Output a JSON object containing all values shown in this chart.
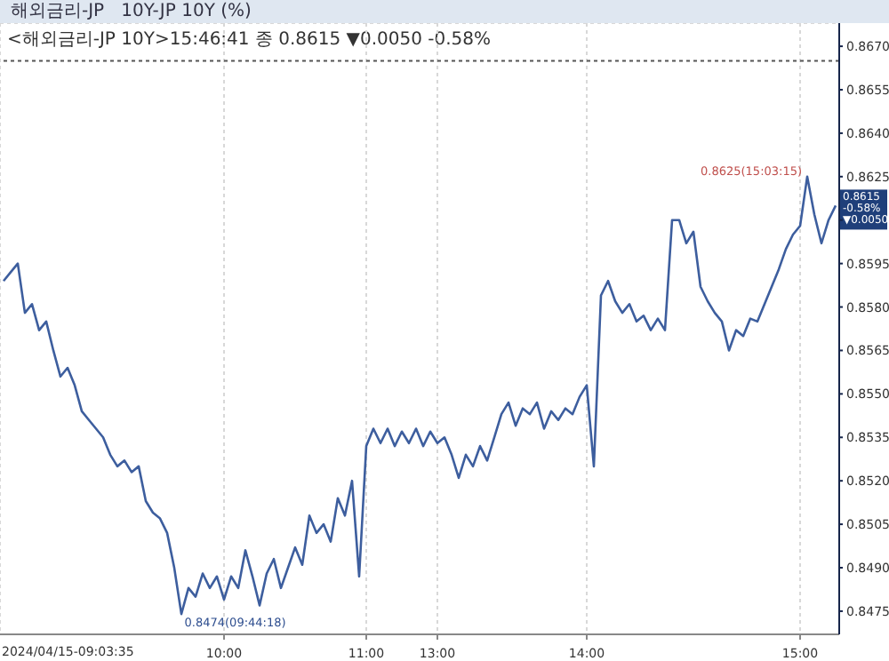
{
  "chart_data": {
    "type": "line",
    "title": "해외금리-JP   10Y-JP 10Y (%)",
    "subtitle": "<해외금리-JP 10Y>15:46:41 종 0.8615 ▼0.0050 -0.58%",
    "categories": [
      null,
      null,
      null,
      null,
      null,
      null,
      null,
      null,
      null,
      null,
      null,
      null,
      null,
      null,
      null,
      null,
      null,
      null,
      null,
      null,
      null,
      null,
      null,
      null,
      null,
      null,
      null,
      null,
      null,
      null,
      null,
      "10:00",
      null,
      null,
      null,
      null,
      null,
      null,
      null,
      null,
      null,
      null,
      null,
      null,
      null,
      null,
      null,
      null,
      null,
      null,
      null,
      "11:00",
      null,
      null,
      null,
      null,
      null,
      null,
      null,
      null,
      null,
      "13:00",
      null,
      null,
      null,
      null,
      null,
      null,
      null,
      null,
      null,
      null,
      null,
      null,
      null,
      null,
      null,
      null,
      null,
      null,
      null,
      null,
      "14:00",
      null,
      null,
      null,
      null,
      null,
      null,
      null,
      null,
      null,
      null,
      null,
      null,
      null,
      null,
      null,
      null,
      null,
      null,
      null,
      null,
      null,
      null,
      null,
      null,
      null,
      null,
      null,
      null,
      null,
      "15:00",
      null,
      null,
      null,
      null,
      null
    ],
    "series": [
      {
        "color": "#3d5e9e",
        "values": [
          0.8589,
          0.8592,
          0.8595,
          0.8578,
          0.8581,
          0.8572,
          0.8575,
          0.8565,
          0.8556,
          0.8559,
          0.8553,
          0.8544,
          0.8541,
          0.8538,
          0.8535,
          0.8529,
          0.8525,
          0.8527,
          0.8523,
          0.8525,
          0.8513,
          0.8509,
          0.8507,
          0.8502,
          0.849,
          0.8474,
          0.8483,
          0.848,
          0.8488,
          0.8483,
          0.8487,
          0.8479,
          0.8487,
          0.8483,
          0.8496,
          0.8487,
          0.8477,
          0.8488,
          0.8493,
          0.8483,
          0.849,
          0.8497,
          0.8491,
          0.8508,
          0.8502,
          0.8505,
          0.8499,
          0.8514,
          0.8508,
          0.852,
          0.8487,
          0.8532,
          0.8538,
          0.8533,
          0.8538,
          0.8532,
          0.8537,
          0.8533,
          0.8538,
          0.8532,
          0.8537,
          0.8533,
          0.8535,
          0.8529,
          0.8521,
          0.8529,
          0.8525,
          0.8532,
          0.8527,
          0.8535,
          0.8543,
          0.8547,
          0.8539,
          0.8545,
          0.8543,
          0.8547,
          0.8538,
          0.8544,
          0.8541,
          0.8545,
          0.8543,
          0.8549,
          0.8553,
          0.8525,
          0.8584,
          0.8589,
          0.8582,
          0.8578,
          0.8581,
          0.8575,
          0.8577,
          0.8572,
          0.8576,
          0.8572,
          0.861,
          0.861,
          0.8602,
          0.8606,
          0.8587,
          0.8582,
          0.8578,
          0.8575,
          0.8565,
          0.8572,
          0.857,
          0.8576,
          0.8575,
          0.8581,
          0.8587,
          0.8593,
          0.86,
          0.8605,
          0.8608,
          0.8625,
          0.8612,
          0.8602,
          0.861,
          0.8615
        ]
      }
    ],
    "ylim": [
      0.8467,
      0.8678
    ],
    "yticks": [
      0.8475,
      {
        "value": 0.849,
        "label": "0.8490"
      },
      0.8505,
      {
        "value": 0.852,
        "label": "0.8520"
      },
      0.8535,
      {
        "value": 0.855,
        "label": "0.8550"
      },
      0.8565,
      {
        "value": 0.858,
        "label": "0.8580"
      },
      0.8595,
      {
        "value": 0.861,
        "label": null
      },
      0.8625,
      {
        "value": 0.864,
        "label": "0.8640"
      },
      0.8655,
      {
        "value": 0.867,
        "label": "0.8670"
      }
    ],
    "grid": true,
    "legend": false,
    "marker": "none",
    "line_style": "solid",
    "ref_lines": [
      {
        "axis": "y",
        "value": 0.8665,
        "color": "#555555",
        "line_style": "dotted"
      }
    ],
    "annotations": [
      "2024/04/15-09:03:35",
      "0.8474(09:44:18)",
      "0.8625(15:03:15)",
      "0.8615",
      "-0.58%",
      "▼0.0050"
    ]
  }
}
